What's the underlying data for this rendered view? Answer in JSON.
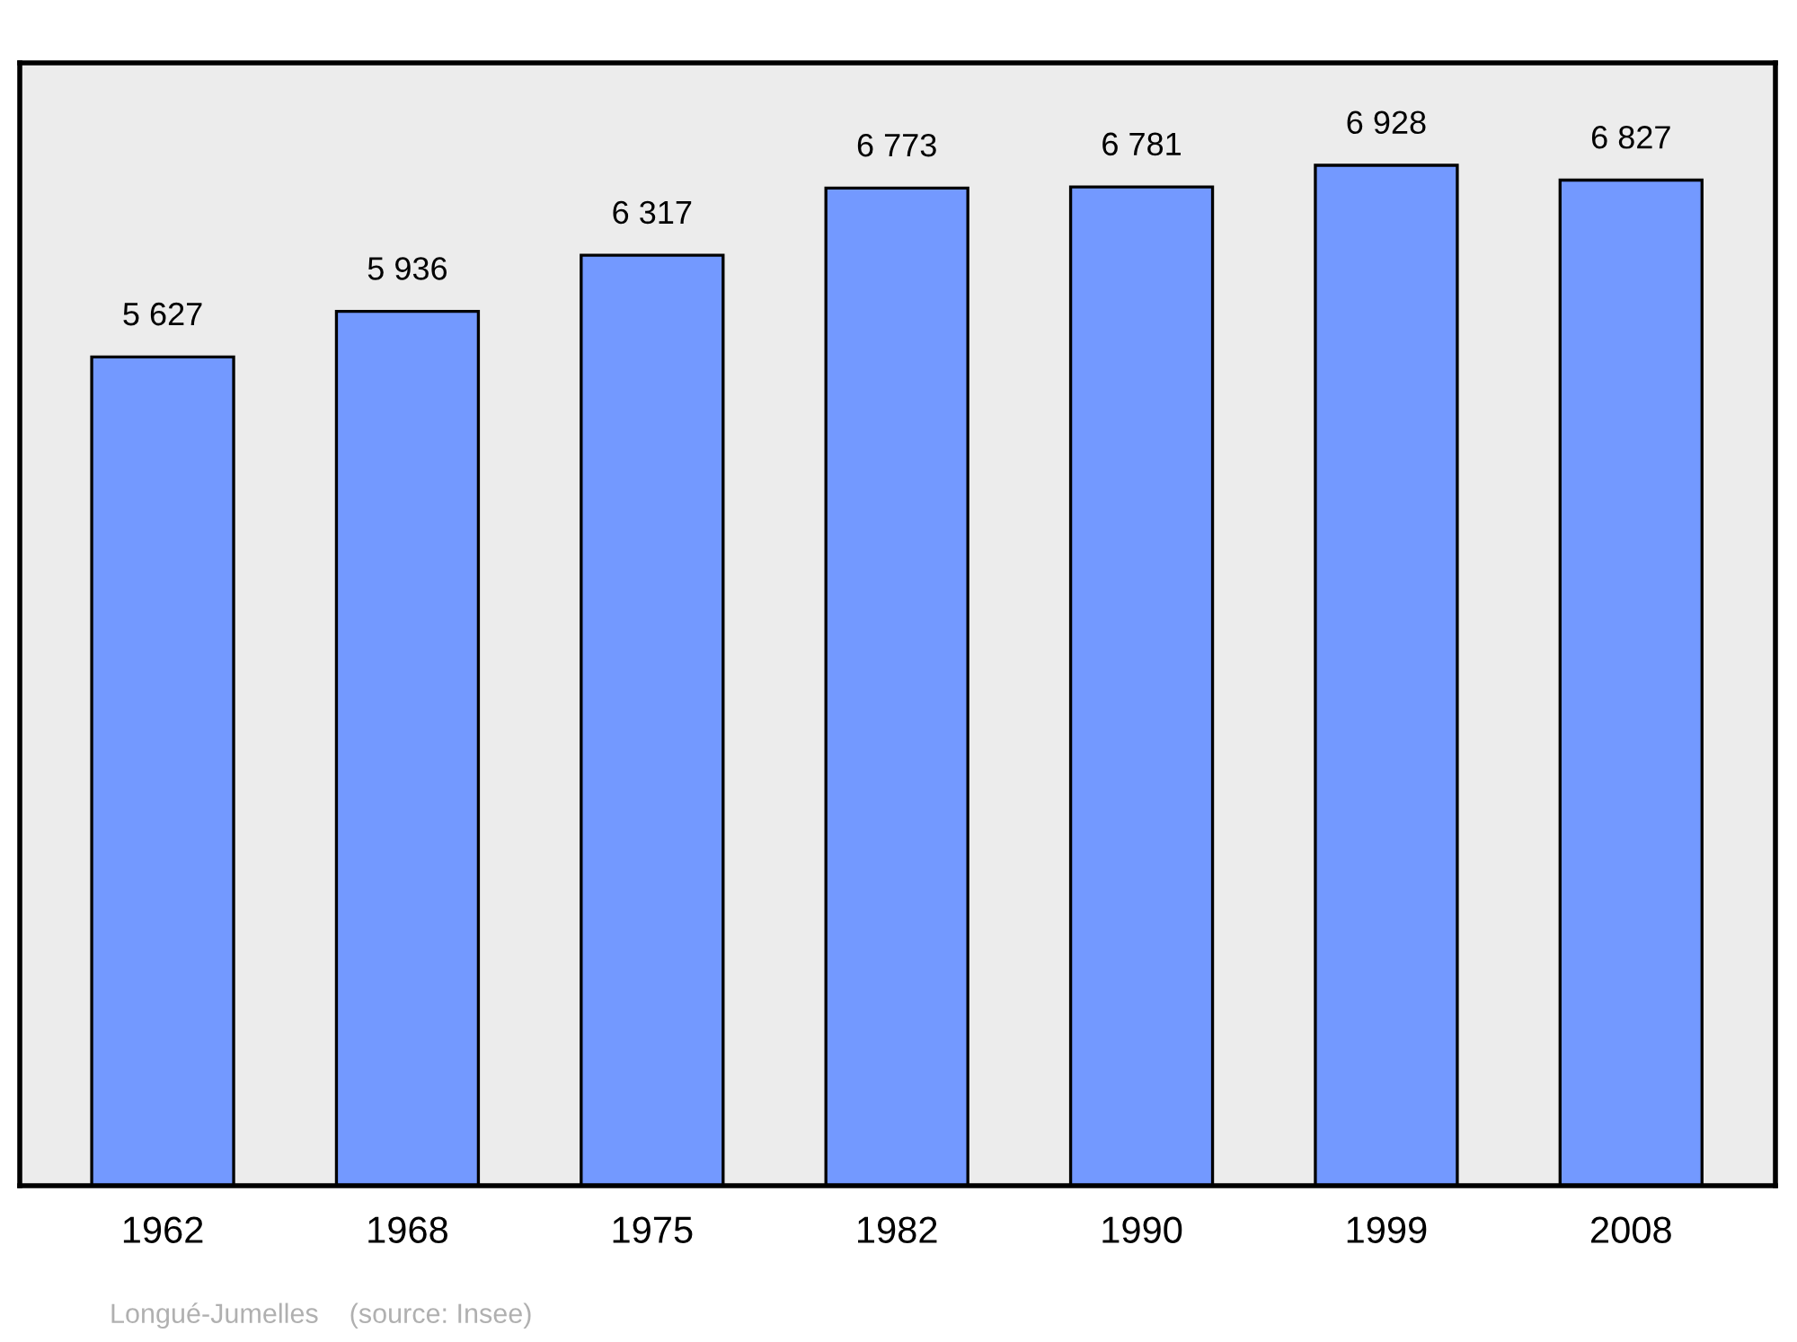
{
  "chart_data": {
    "type": "bar",
    "categories": [
      "1962",
      "1968",
      "1975",
      "1982",
      "1990",
      "1999",
      "2008"
    ],
    "values": [
      5627,
      5936,
      6317,
      6773,
      6781,
      6928,
      6827
    ],
    "value_labels": [
      "5 627",
      "5 936",
      "6 317",
      "6 773",
      "6 781",
      "6 928",
      "6 827"
    ],
    "color": "#7399ff",
    "ylim": [
      0,
      7623
    ],
    "tick_labels": "x",
    "grid": false,
    "legend": false,
    "annotations": [
      "Longué-Jumelles    (source: Insee)"
    ]
  }
}
